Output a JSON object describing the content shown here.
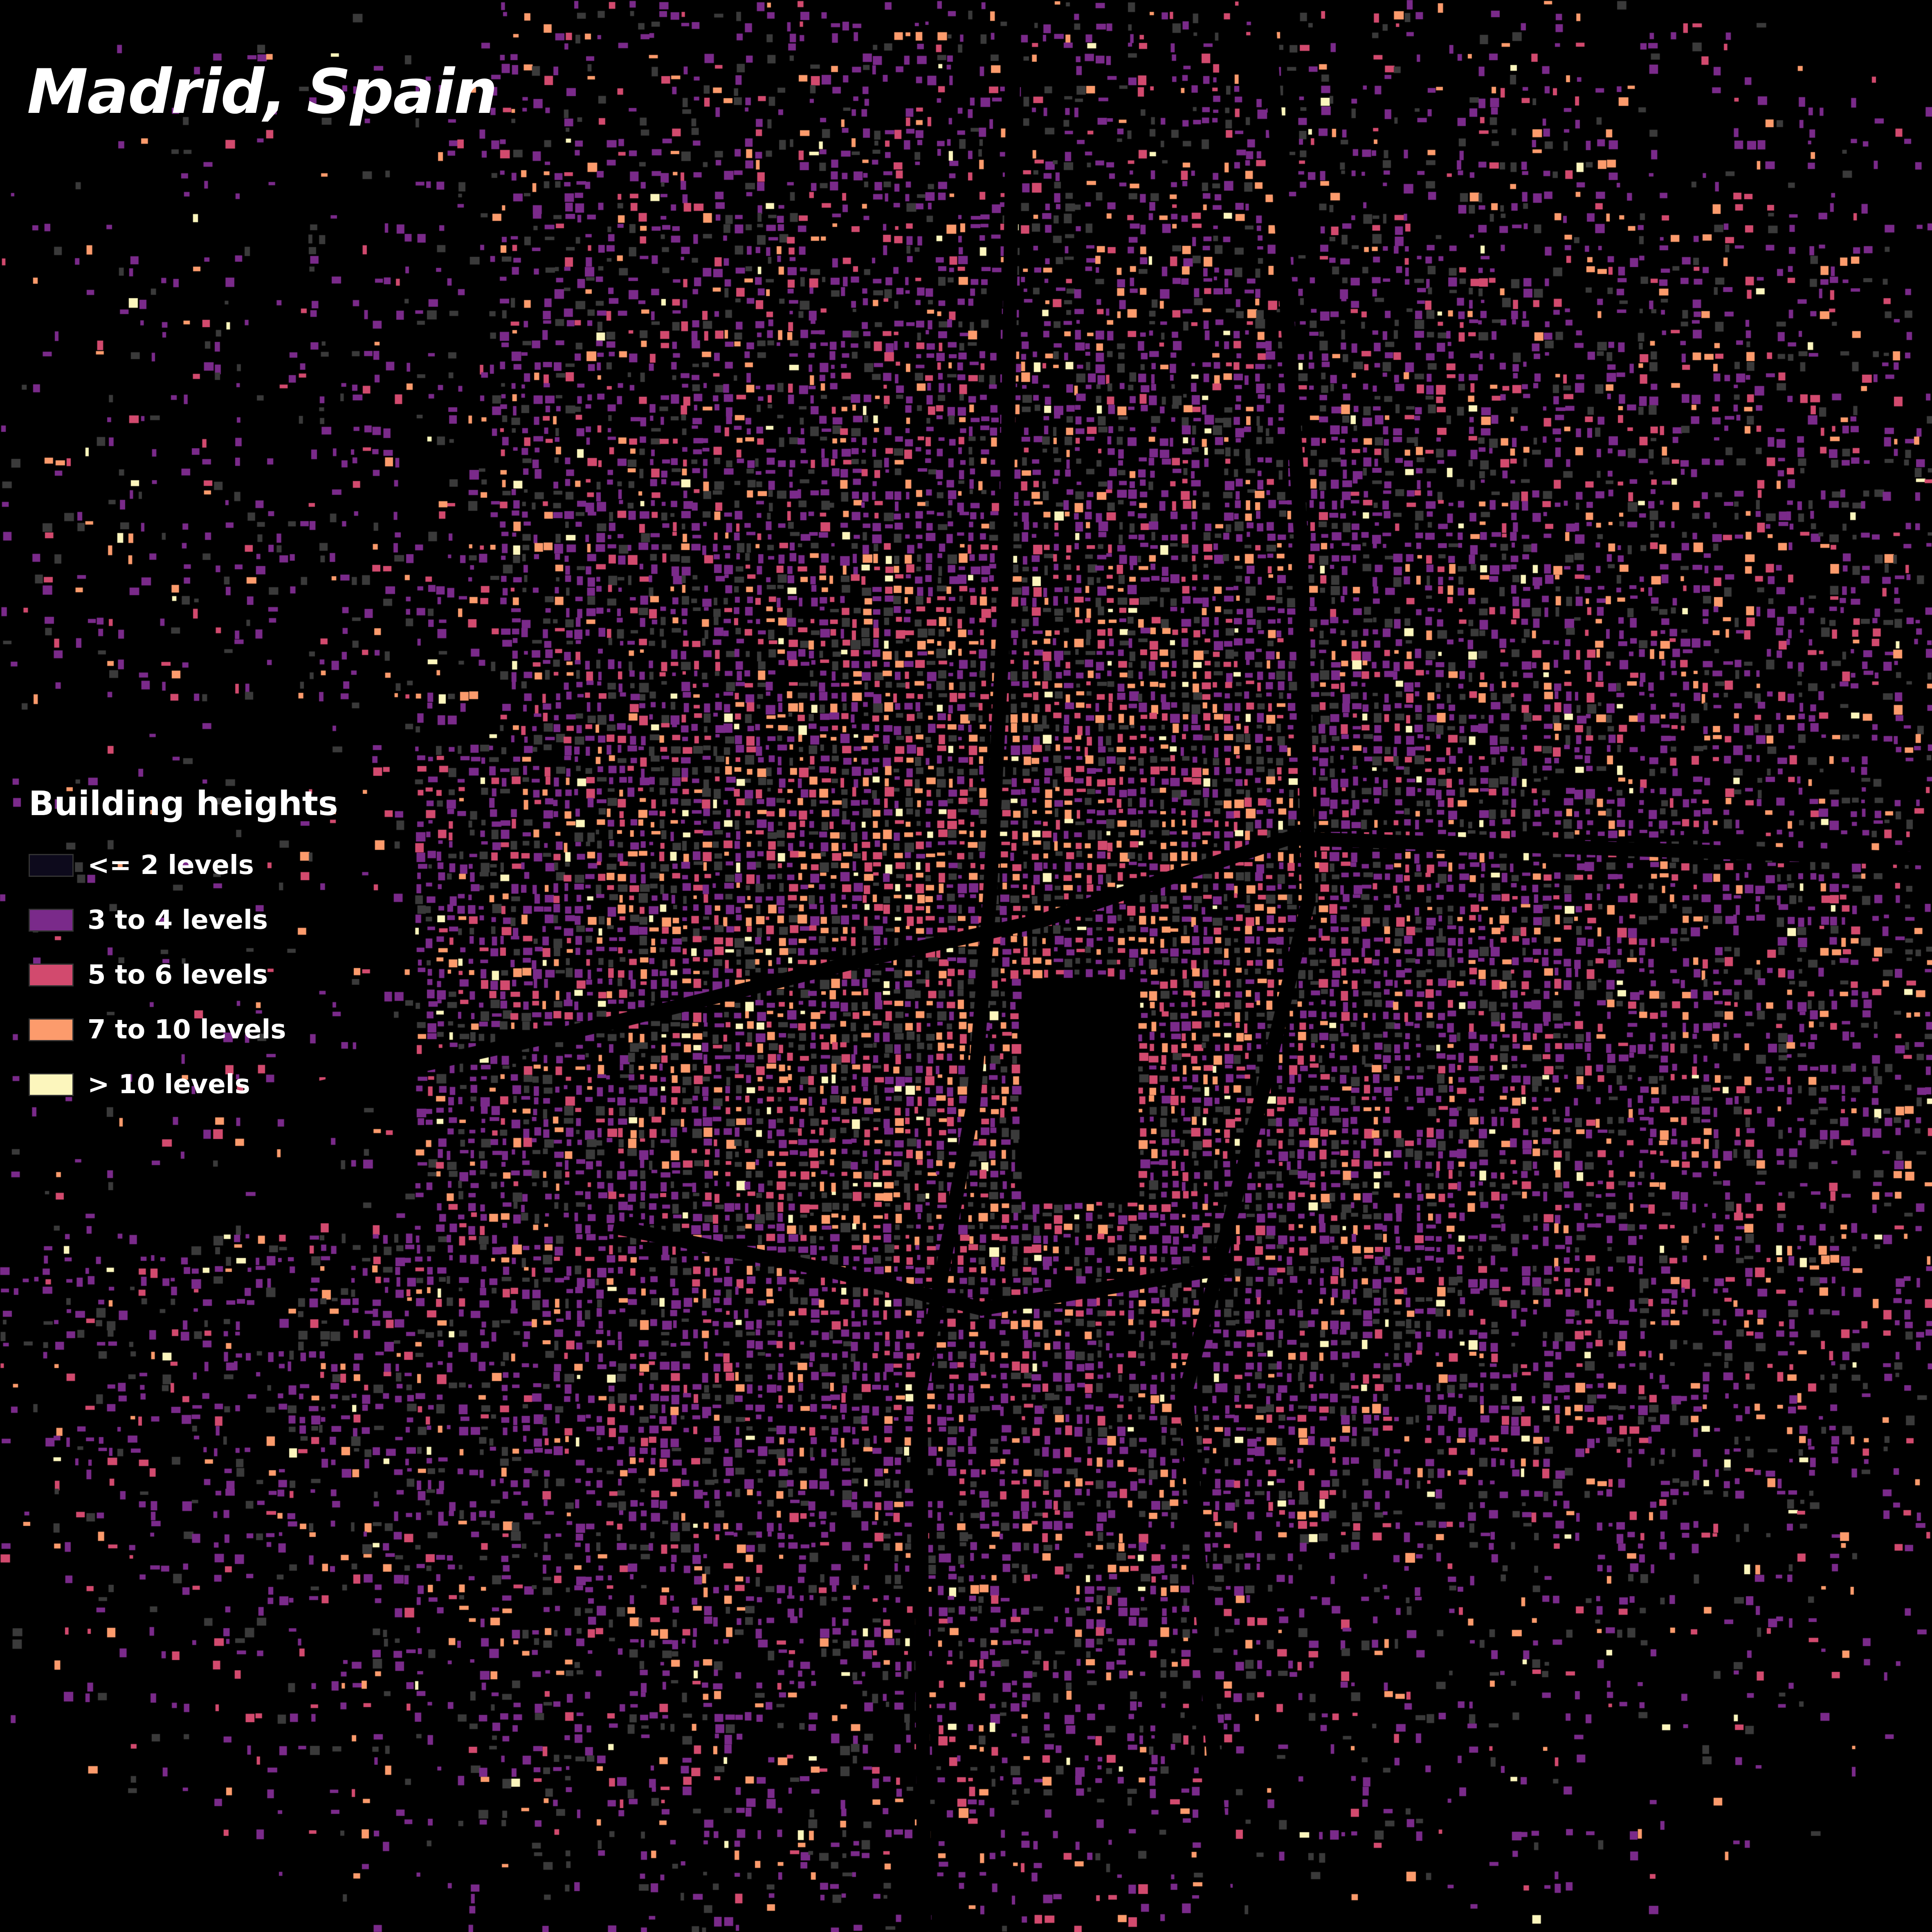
{
  "map": {
    "title": "Madrid, Spain",
    "background_color": "#000000",
    "legend": {
      "title": "Building heights",
      "items": [
        {
          "label": "<= 2 levels",
          "color": "#0d0a1c"
        },
        {
          "label": "3 to 4 levels",
          "color": "#7a2a8a"
        },
        {
          "label": "5 to 6 levels",
          "color": "#d24a6e"
        },
        {
          "label": "7 to 10 levels",
          "color": "#fc9b6c"
        },
        {
          "label": "> 10 levels",
          "color": "#fcf6bd"
        }
      ]
    },
    "unclassified_color": "#3a3a3a"
  }
}
